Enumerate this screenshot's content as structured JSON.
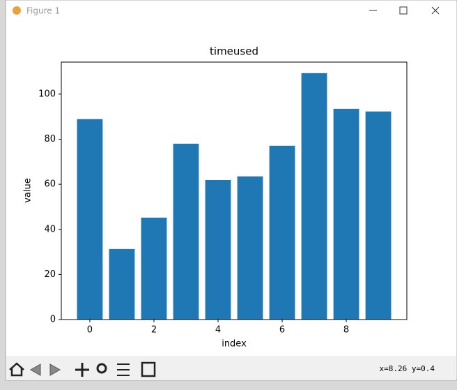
{
  "window": {
    "title": "Figure 1",
    "status": "x=8.26 y=0.4"
  },
  "chart_data": {
    "type": "bar",
    "title": "timeused",
    "x_label": "index",
    "y_label": "value",
    "x": [
      0,
      1,
      2,
      3,
      4,
      5,
      6,
      7,
      8,
      9
    ],
    "values": [
      88.9,
      31.3,
      45.2,
      78.0,
      61.9,
      63.5,
      77.1,
      109.3,
      93.5,
      92.3
    ],
    "color": "#1f77b4",
    "bar_width": 0.8,
    "xlim": [
      -0.89,
      9.89
    ],
    "xticks": [
      0,
      2,
      4,
      6,
      8
    ],
    "ylim": [
      0,
      114.2
    ],
    "yticks": [
      0,
      20,
      40,
      60,
      80,
      100
    ],
    "grid": false
  }
}
